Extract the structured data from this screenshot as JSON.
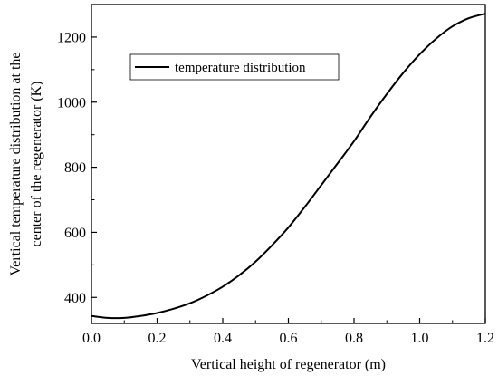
{
  "chart_data": {
    "type": "line",
    "xlabel": "Vertical height of regenerator (m)",
    "ylabel_lines": [
      "Vertical temperature distribution at the",
      "center of the regenerator (K)"
    ],
    "xlim": [
      0.0,
      1.2
    ],
    "ylim": [
      320,
      1300
    ],
    "x_ticks": [
      0.0,
      0.2,
      0.4,
      0.6,
      0.8,
      1.0,
      1.2
    ],
    "x_tick_labels": [
      "0.0",
      "0.2",
      "0.4",
      "0.6",
      "0.8",
      "1.0",
      "1.2"
    ],
    "y_ticks": [
      400,
      600,
      800,
      1000,
      1200
    ],
    "y_tick_labels": [
      "400",
      "600",
      "800",
      "1000",
      "1200"
    ],
    "grid": false,
    "legend_position": "top-left",
    "series": [
      {
        "name": "temperature distribution",
        "color": "#000000",
        "x": [
          0.0,
          0.05,
          0.1,
          0.15,
          0.2,
          0.25,
          0.3,
          0.35,
          0.4,
          0.45,
          0.5,
          0.55,
          0.6,
          0.65,
          0.7,
          0.75,
          0.8,
          0.85,
          0.9,
          0.95,
          1.0,
          1.05,
          1.1,
          1.15,
          1.2
        ],
        "y": [
          343,
          337,
          337,
          343,
          352,
          365,
          382,
          405,
          433,
          468,
          510,
          560,
          615,
          678,
          745,
          812,
          880,
          955,
          1025,
          1090,
          1147,
          1195,
          1233,
          1258,
          1272
        ]
      }
    ]
  }
}
